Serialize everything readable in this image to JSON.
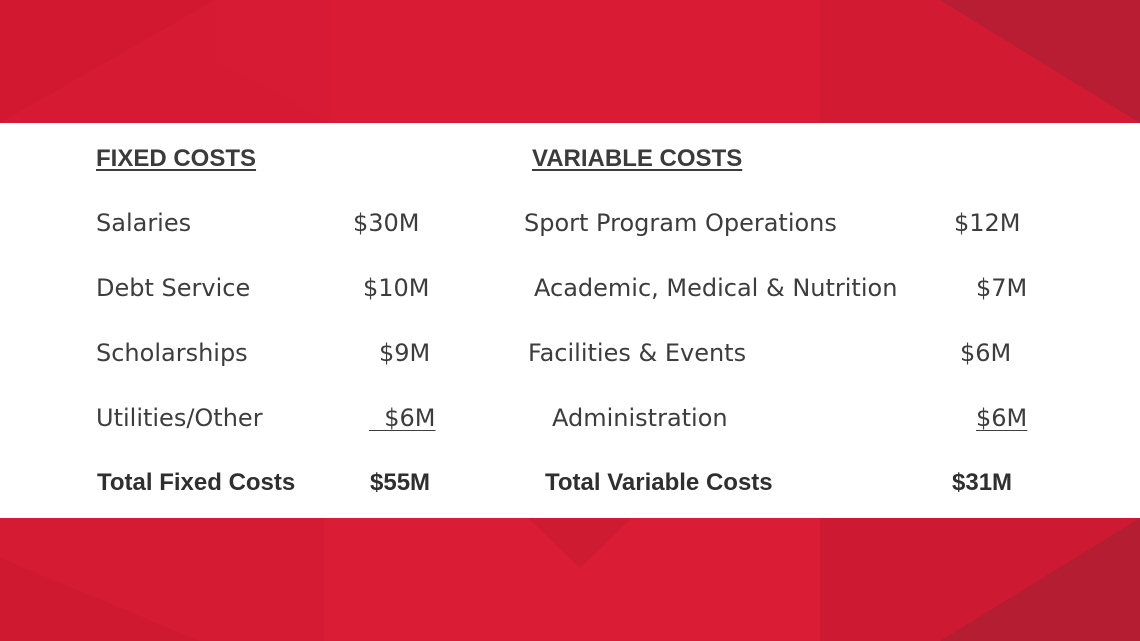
{
  "colors": {
    "background_red": "#d61a33",
    "panel": "#ffffff",
    "text": "#3d3d3d"
  },
  "fixed": {
    "heading": "FIXED COSTS",
    "items": [
      {
        "label": "Salaries",
        "amount": "$30M"
      },
      {
        "label": "Debt Service",
        "amount": "$10M"
      },
      {
        "label": "Scholarships",
        "amount": "$9M"
      },
      {
        "label": "Utilities/Other",
        "amount": "  $6M"
      }
    ],
    "total_label": "Total Fixed Costs",
    "total_amount": "$55M"
  },
  "variable": {
    "heading": "VARIABLE COSTS",
    "items": [
      {
        "label": "Sport Program Operations",
        "amount": "$12M"
      },
      {
        "label": "Academic, Medical & Nutrition",
        "amount": "$7M"
      },
      {
        "label": "Facilities & Events",
        "amount": "$6M"
      },
      {
        "label": "Administration",
        "amount": "$6M"
      }
    ],
    "total_label": "Total Variable Costs",
    "total_amount": "$31M"
  }
}
